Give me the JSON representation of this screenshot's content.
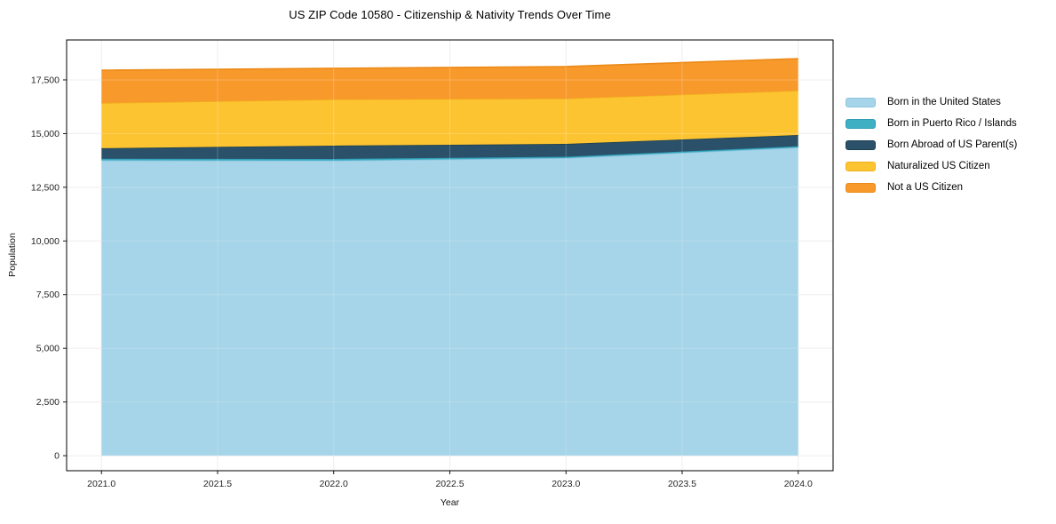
{
  "chart_data": {
    "type": "area",
    "stacked": true,
    "title": "US ZIP Code 10580 - Citizenship & Nativity Trends Over Time",
    "xlabel": "Year",
    "ylabel": "Population",
    "x": [
      2021,
      2022,
      2023,
      2024
    ],
    "series": [
      {
        "name": "Born in the United States",
        "values": [
          13750,
          13740,
          13860,
          14350
        ],
        "fill": "#a6d4e8",
        "edge": "#8cc5e0"
      },
      {
        "name": "Born in Puerto Rico / Islands",
        "values": [
          80,
          80,
          60,
          60
        ],
        "fill": "#3fafc4",
        "edge": "#2d9db4"
      },
      {
        "name": "Born Abroad of US Parent(s)",
        "values": [
          490,
          620,
          600,
          525
        ],
        "fill": "#2a5169",
        "edge": "#1e4050"
      },
      {
        "name": "Naturalized US Citizen",
        "values": [
          2100,
          2150,
          2110,
          2065
        ],
        "fill": "#fdc432",
        "edge": "#f0b21c"
      },
      {
        "name": "Not a US Citizen",
        "values": [
          1530,
          1450,
          1490,
          1490
        ],
        "fill": "#f8992c",
        "edge": "#ec8a17"
      }
    ],
    "stacked_totals": [
      17950,
      18040,
      18120,
      18490
    ],
    "x_ticks": {
      "values": [
        2021.0,
        2021.5,
        2022.0,
        2022.5,
        2023.0,
        2023.5,
        2024.0
      ],
      "labels": [
        "2021.0",
        "2021.5",
        "2022.0",
        "2022.5",
        "2023.0",
        "2023.5",
        "2024.0"
      ]
    },
    "y_ticks": {
      "values": [
        0,
        2500,
        5000,
        7500,
        10000,
        12500,
        15000,
        17500
      ],
      "labels": [
        "0",
        "2,500",
        "5,000",
        "7,500",
        "10,000",
        "12,500",
        "15,000",
        "17,500"
      ]
    },
    "xlim": [
      2020.85,
      2024.15
    ],
    "ylim": [
      -700,
      19360
    ],
    "grid": true,
    "legend_position": "right",
    "colors": {
      "grid": "#ebebeb",
      "frame": "#000000",
      "tick_text": "#262626",
      "background": "#ffffff"
    }
  }
}
